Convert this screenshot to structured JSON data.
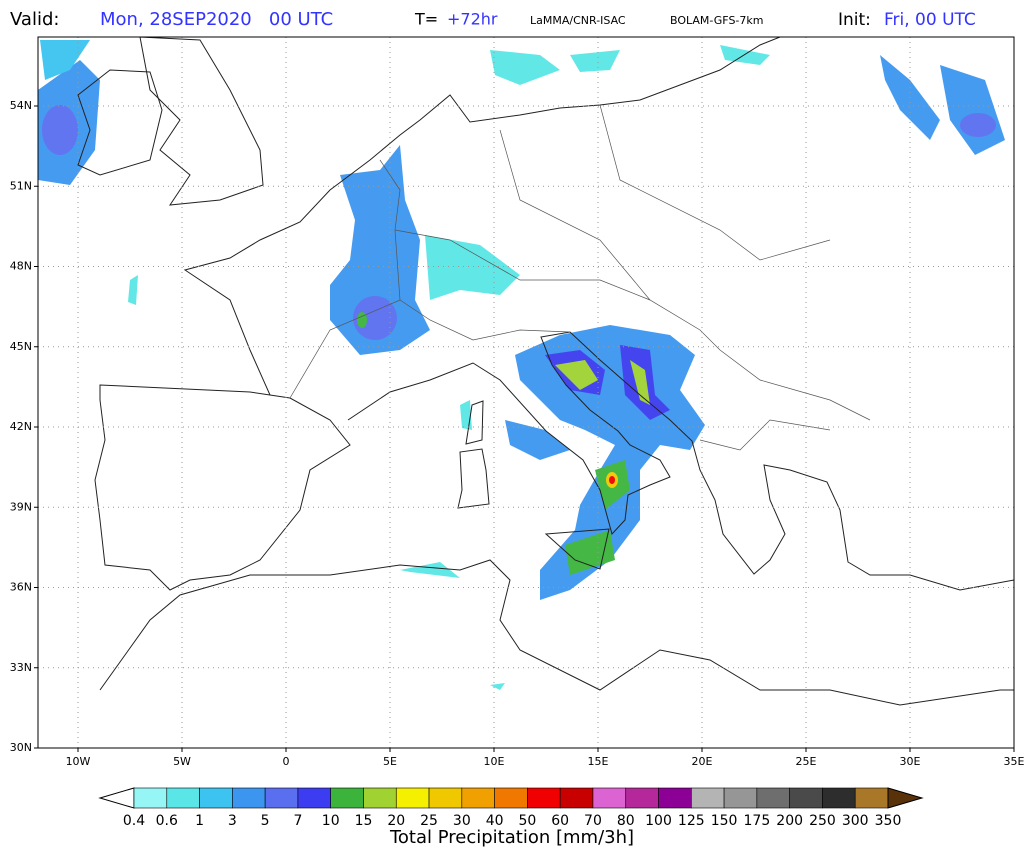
{
  "header": {
    "valid_label": "Valid:",
    "valid_time": "Mon, 28SEP2020   00 UTC",
    "step_label": "T=",
    "step": "+72hr",
    "institute": "LaMMA/CNR-ISAC",
    "model": "BOLAM-GFS-7km",
    "init_label": "Init:",
    "init_time": "Fri, 00 UTC"
  },
  "map": {
    "lat_labels": [
      "54N",
      "51N",
      "48N",
      "45N",
      "42N",
      "39N",
      "36N",
      "33N",
      "30N"
    ],
    "lon_labels": [
      "10W",
      "5W",
      "0",
      "5E",
      "10E",
      "15E",
      "20E",
      "25E",
      "30E",
      "35E"
    ]
  },
  "colorbar": {
    "labels": [
      0.4,
      0.6,
      1,
      3,
      5,
      7,
      10,
      15,
      20,
      25,
      30,
      40,
      50,
      60,
      70,
      80,
      100,
      125,
      150,
      175,
      200,
      250,
      300,
      350
    ],
    "colors": [
      "#ffffff",
      "#96f5f5",
      "#5ae6e6",
      "#3cc3f0",
      "#3c96f0",
      "#5a6ef0",
      "#3c3cf0",
      "#3cb43c",
      "#a0d232",
      "#f5f000",
      "#f0c800",
      "#f0a000",
      "#f07800",
      "#f00000",
      "#c80000",
      "#dc64d2",
      "#b4289b",
      "#8c0096",
      "#b4b4b4",
      "#969696",
      "#6e6e6e",
      "#4a4a4a",
      "#2d2d2d",
      "#a87828",
      "#7c5014",
      "#5a320a"
    ],
    "title": "Total Precipitation [mm/3h]"
  }
}
